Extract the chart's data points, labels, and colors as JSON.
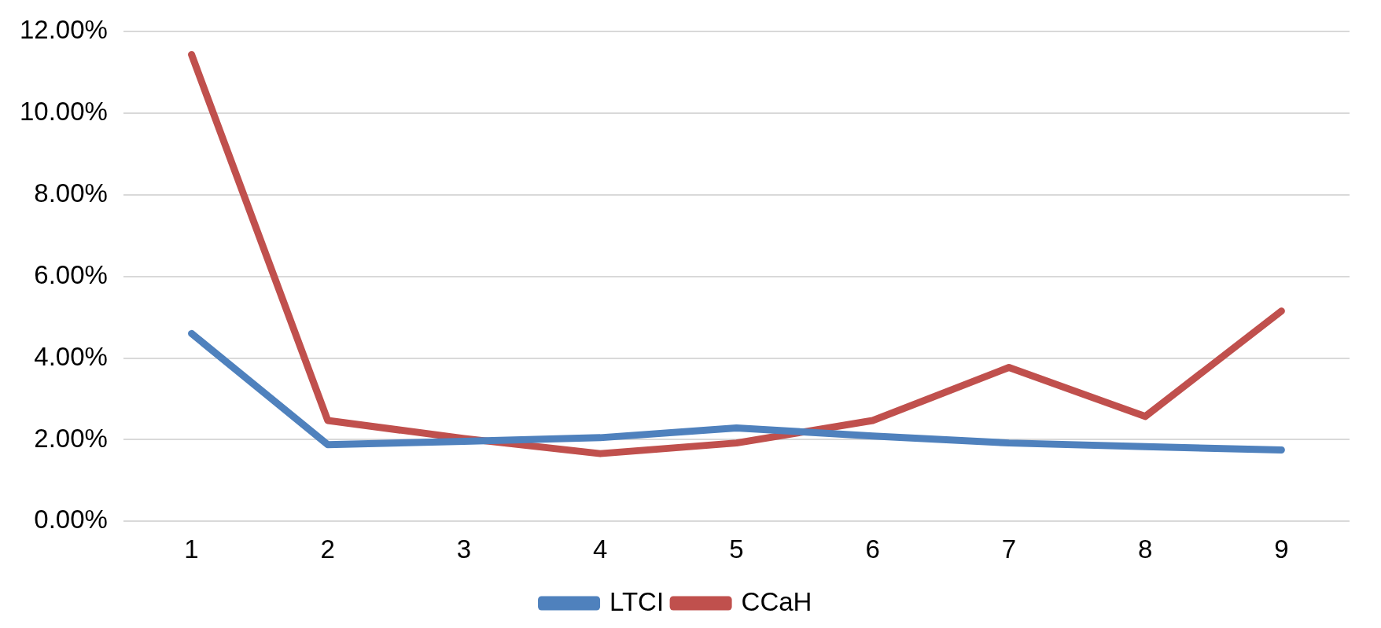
{
  "chart_data": {
    "type": "line",
    "categories": [
      "1",
      "2",
      "3",
      "4",
      "5",
      "6",
      "7",
      "8",
      "9"
    ],
    "series": [
      {
        "name": "LTCI",
        "color": "#4f81bd",
        "values": [
          4.6,
          1.88,
          1.96,
          2.05,
          2.29,
          2.09,
          1.92,
          1.83,
          1.75
        ]
      },
      {
        "name": "CCaH",
        "color": "#c0504d",
        "values": [
          11.43,
          2.47,
          2.03,
          1.66,
          1.92,
          2.47,
          3.77,
          2.57,
          5.15
        ]
      }
    ],
    "ylim": [
      0,
      12
    ],
    "yticks": [
      {
        "value": 0,
        "label": "0.00%"
      },
      {
        "value": 2,
        "label": "2.00%"
      },
      {
        "value": 4,
        "label": "4.00%"
      },
      {
        "value": 6,
        "label": "6.00%"
      },
      {
        "value": 8,
        "label": "8.00%"
      },
      {
        "value": 10,
        "label": "10.00%"
      },
      {
        "value": 12,
        "label": "12.00%"
      }
    ],
    "grid": "y",
    "legend": "bottom",
    "marker": "none",
    "line_style": "solid"
  }
}
